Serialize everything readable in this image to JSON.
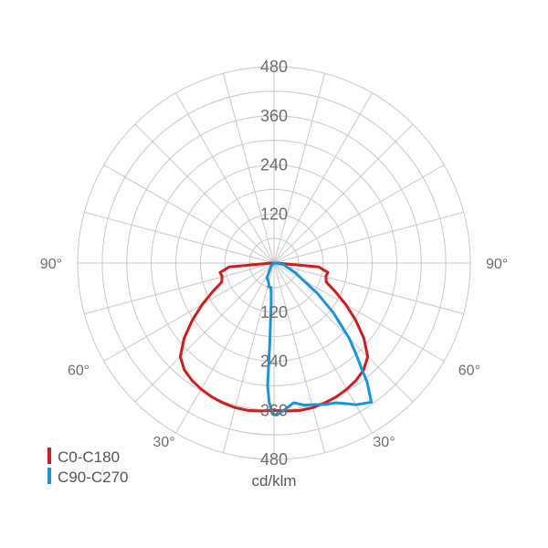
{
  "chart_data": {
    "type": "polar",
    "unit_label": "cd/klm",
    "radial_ticks": [
      120,
      240,
      360,
      480
    ],
    "rmax": 480,
    "angle_labels": [
      {
        "text": "90°",
        "angle": -90
      },
      {
        "text": "90°",
        "angle": 90
      },
      {
        "text": "60°",
        "angle": -60
      },
      {
        "text": "60°",
        "angle": 60
      },
      {
        "text": "30°",
        "angle": -30
      },
      {
        "text": "30°",
        "angle": 30
      }
    ],
    "series": [
      {
        "name": "C0-C180",
        "color": "#cc1f1f",
        "points": [
          [
            -90,
            0
          ],
          [
            -87,
            13
          ],
          [
            -85,
            110
          ],
          [
            -80,
            134
          ],
          [
            -76,
            131
          ],
          [
            -73,
            133
          ],
          [
            -70,
            136
          ],
          [
            -65,
            165
          ],
          [
            -60,
            203
          ],
          [
            -55,
            244
          ],
          [
            -50,
            287
          ],
          [
            -45,
            324
          ],
          [
            -40,
            341
          ],
          [
            -35,
            350
          ],
          [
            -30,
            356
          ],
          [
            -25,
            361
          ],
          [
            -20,
            364
          ],
          [
            -15,
            366
          ],
          [
            -10,
            366
          ],
          [
            -5,
            363
          ],
          [
            0,
            360
          ],
          [
            5,
            363
          ],
          [
            10,
            366
          ],
          [
            15,
            366
          ],
          [
            20,
            364
          ],
          [
            25,
            361
          ],
          [
            30,
            356
          ],
          [
            35,
            350
          ],
          [
            40,
            341
          ],
          [
            45,
            324
          ],
          [
            50,
            287
          ],
          [
            55,
            244
          ],
          [
            60,
            203
          ],
          [
            65,
            165
          ],
          [
            70,
            136
          ],
          [
            73,
            133
          ],
          [
            76,
            131
          ],
          [
            80,
            134
          ],
          [
            85,
            110
          ],
          [
            87,
            13
          ],
          [
            90,
            0
          ]
        ]
      },
      {
        "name": "C90-C270",
        "color": "#1a94d8",
        "points": [
          [
            -90,
            0
          ],
          [
            -45,
            10
          ],
          [
            -25,
            40
          ],
          [
            -15,
            50
          ],
          [
            -12,
            60
          ],
          [
            -7,
            60
          ],
          [
            -5,
            80
          ],
          [
            -4,
            100
          ],
          [
            -3,
            200
          ],
          [
            -3,
            300
          ],
          [
            -2,
            340
          ],
          [
            -1,
            360
          ],
          [
            0,
            370
          ],
          [
            1,
            372
          ],
          [
            4,
            360
          ],
          [
            8,
            345
          ],
          [
            12,
            355
          ],
          [
            16,
            360
          ],
          [
            20,
            368
          ],
          [
            24,
            374
          ],
          [
            28,
            390
          ],
          [
            30,
            400
          ],
          [
            35,
            415
          ],
          [
            38,
            370
          ],
          [
            40,
            330
          ],
          [
            42,
            300
          ],
          [
            45,
            260
          ],
          [
            50,
            190
          ],
          [
            55,
            130
          ],
          [
            60,
            80
          ],
          [
            65,
            60
          ],
          [
            70,
            40
          ],
          [
            75,
            30
          ],
          [
            80,
            25
          ],
          [
            85,
            10
          ],
          [
            90,
            0
          ]
        ]
      }
    ]
  }
}
